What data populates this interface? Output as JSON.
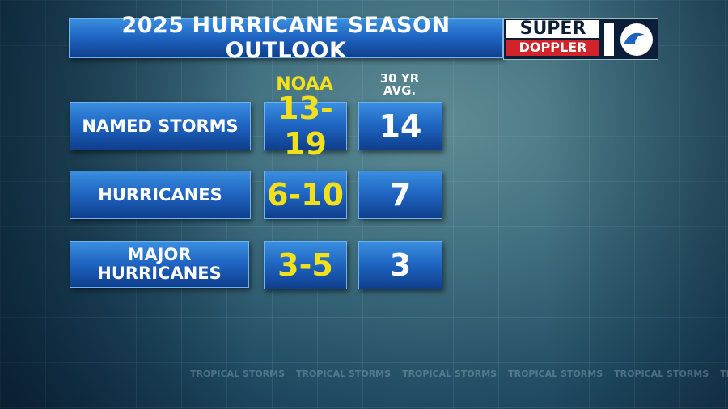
{
  "header": {
    "title": "2025 HURRICANE SEASON OUTLOOK",
    "logo_top": "SUPER",
    "logo_bottom": "DOPPLER"
  },
  "table": {
    "columns": [
      "NOAA",
      "30 YR AVG."
    ],
    "rows": [
      [
        "NAMED STORMS",
        "13-19",
        "14"
      ],
      [
        "HURRICANES",
        "6-10",
        "7"
      ],
      [
        "MAJOR HURRICANES",
        "3-5",
        "3"
      ]
    ]
  },
  "background": {
    "watermark": "TROPICAL STORMS"
  }
}
